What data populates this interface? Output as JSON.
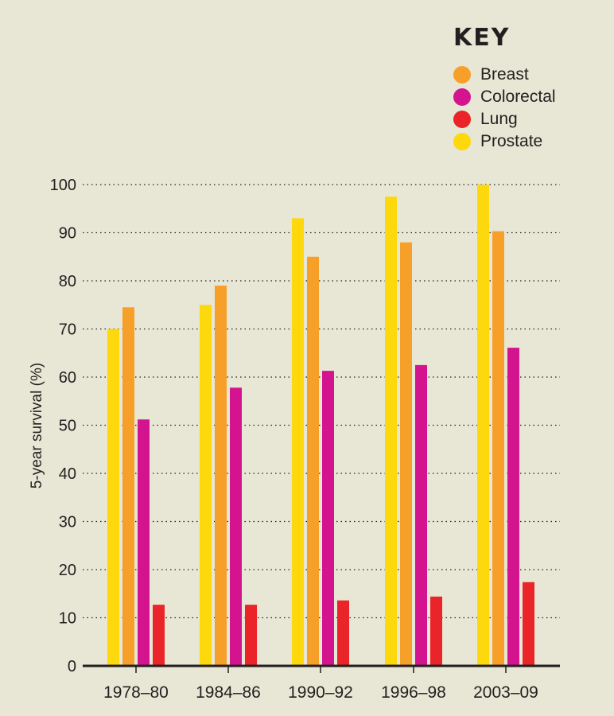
{
  "key": {
    "title": "KEY",
    "items": [
      {
        "label": "Breast",
        "color": "#f7a029"
      },
      {
        "label": "Colorectal",
        "color": "#d4148f"
      },
      {
        "label": "Lung",
        "color": "#ea2428"
      },
      {
        "label": "Prostate",
        "color": "#fdd80d"
      }
    ]
  },
  "chart_data": {
    "type": "bar",
    "ylabel": "5-year survival (%)",
    "xlabel": "",
    "ylim": [
      0,
      100
    ],
    "yticks": [
      0,
      10,
      20,
      30,
      40,
      50,
      60,
      70,
      80,
      90,
      100
    ],
    "grid": "horizontal dotted",
    "legend_position": "top-right",
    "categories": [
      "1978–80",
      "1984–86",
      "1990–92",
      "1996–98",
      "2003–09"
    ],
    "series": [
      {
        "name": "Prostate",
        "color": "#fdd80d",
        "values": [
          70,
          75,
          93,
          97.5,
          100
        ]
      },
      {
        "name": "Breast",
        "color": "#f7a029",
        "values": [
          74.5,
          79,
          85,
          88,
          90.3
        ]
      },
      {
        "name": "Colorectal",
        "color": "#d4148f",
        "values": [
          51.2,
          57.8,
          61.3,
          62.5,
          66.1
        ]
      },
      {
        "name": "Lung",
        "color": "#ea2428",
        "values": [
          12.7,
          12.7,
          13.6,
          14.4,
          17.4
        ]
      }
    ]
  }
}
